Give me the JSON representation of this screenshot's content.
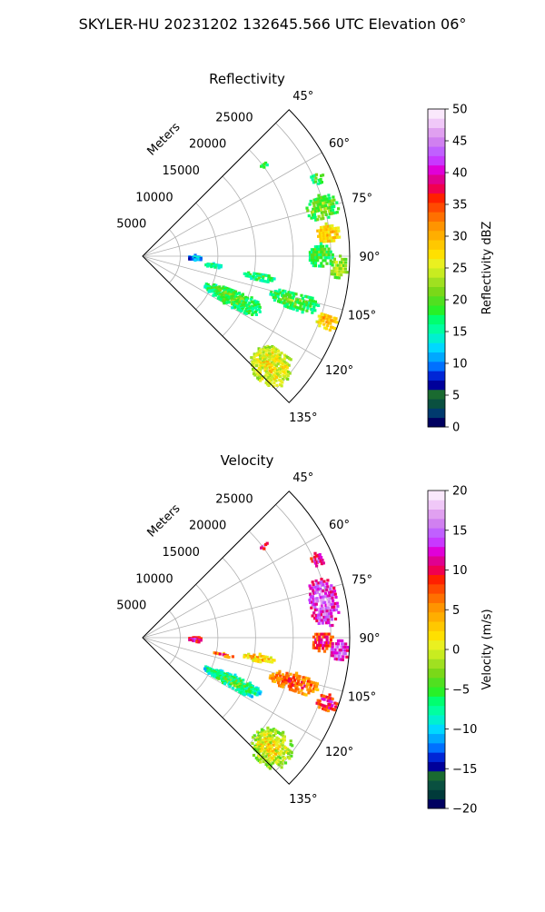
{
  "figure": {
    "suptitle": "SKYLER-HU  20231202  132645.566 UTC Elevation 06°"
  },
  "chart_data": [
    {
      "type": "heatmap",
      "projection": "polar-sector",
      "title": "Reflectivity",
      "radial_label": "Meters",
      "azimuth_range_deg": [
        45,
        135
      ],
      "azimuth_ticks": [
        "45°",
        "60°",
        "75°",
        "90°",
        "105°",
        "120°",
        "135°"
      ],
      "azimuth_tick_values": [
        45,
        60,
        75,
        90,
        105,
        120,
        135
      ],
      "range_ticks": [
        "5000",
        "10000",
        "15000",
        "20000",
        "25000"
      ],
      "range_tick_values": [
        5000,
        10000,
        15000,
        20000,
        25000
      ],
      "range_max": 27500,
      "grid": true,
      "colorbar": {
        "label": "Reflectivity dBZ",
        "min": 0,
        "max": 50,
        "ticks": [
          "0",
          "5",
          "10",
          "15",
          "20",
          "25",
          "30",
          "35",
          "40",
          "45",
          "50"
        ],
        "tick_values": [
          0,
          5,
          10,
          15,
          20,
          25,
          30,
          35,
          40,
          45,
          50
        ],
        "colors": [
          "#000060",
          "#003a6e",
          "#0a5040",
          "#1a6a30",
          "#00009a",
          "#0026d6",
          "#0070ff",
          "#00a8ff",
          "#00d8ff",
          "#00f0d0",
          "#00ffa0",
          "#00ff70",
          "#28f028",
          "#50e020",
          "#7ad818",
          "#a0e020",
          "#c8ec20",
          "#eaf020",
          "#ffe000",
          "#ffc800",
          "#ffae00",
          "#ff9400",
          "#ff7000",
          "#ff4a00",
          "#ff2000",
          "#f00050",
          "#e00090",
          "#e000d8",
          "#c838ff",
          "#c060ff",
          "#d080f0",
          "#e0a0f0",
          "#f0c8f8",
          "#fae8fc"
        ]
      },
      "echoes": [
        {
          "az": [
            71,
            79
          ],
          "r": [
            22500,
            27000
          ],
          "value": 22
        },
        {
          "az": [
            80,
            86
          ],
          "r": [
            23000,
            26500
          ],
          "value": 30
        },
        {
          "az": [
            86,
            94
          ],
          "r": [
            22000,
            25500
          ],
          "value": 20
        },
        {
          "az": [
            90,
            97
          ],
          "r": [
            25000,
            27500
          ],
          "value": 24
        },
        {
          "az": [
            98,
            102
          ],
          "r": [
            13500,
            18000
          ],
          "value": 19
        },
        {
          "az": [
            103,
            110
          ],
          "r": [
            17500,
            24500
          ],
          "value": 20
        },
        {
          "az": [
            107,
            112
          ],
          "r": [
            24500,
            27500
          ],
          "value": 30
        },
        {
          "az": [
            110,
            120
          ],
          "r": [
            9000,
            17500
          ],
          "value": 20
        },
        {
          "az": [
            124,
            137
          ],
          "r": [
            19500,
            25500
          ],
          "value": 27
        },
        {
          "az": [
            64,
            68
          ],
          "r": [
            24500,
            26500
          ],
          "value": 20
        },
        {
          "az": [
            52,
            54
          ],
          "r": [
            19500,
            21000
          ],
          "value": 20
        },
        {
          "az": [
            89,
            95
          ],
          "r": [
            6000,
            8000
          ],
          "value": 12
        },
        {
          "az": [
            96,
            99
          ],
          "r": [
            8000,
            11000
          ],
          "value": 17
        }
      ]
    },
    {
      "type": "heatmap",
      "projection": "polar-sector",
      "title": "Velocity",
      "radial_label": "Meters",
      "azimuth_range_deg": [
        45,
        135
      ],
      "azimuth_ticks": [
        "45°",
        "60°",
        "75°",
        "90°",
        "105°",
        "120°",
        "135°"
      ],
      "azimuth_tick_values": [
        45,
        60,
        75,
        90,
        105,
        120,
        135
      ],
      "range_ticks": [
        "5000",
        "10000",
        "15000",
        "20000",
        "25000"
      ],
      "range_tick_values": [
        5000,
        10000,
        15000,
        20000,
        25000
      ],
      "range_max": 27500,
      "grid": true,
      "colorbar": {
        "label": "Velocity (m/s)",
        "min": -20,
        "max": 20,
        "ticks": [
          "−20",
          "−15",
          "−10",
          "−5",
          "0",
          "5",
          "10",
          "15",
          "20"
        ],
        "tick_values": [
          -20,
          -15,
          -10,
          -5,
          0,
          5,
          10,
          15,
          20
        ],
        "colors": [
          "#000060",
          "#003a3a",
          "#0a5040",
          "#1a6a30",
          "#00009a",
          "#0026d6",
          "#0070ff",
          "#00a8ff",
          "#00d8ff",
          "#00f0d0",
          "#00ffa0",
          "#00ff70",
          "#28f028",
          "#50e020",
          "#7ad818",
          "#a0e020",
          "#c8ec20",
          "#eaf020",
          "#ffe000",
          "#ffc800",
          "#ffae00",
          "#ff9400",
          "#ff7000",
          "#ff4a00",
          "#ff2000",
          "#f00050",
          "#e00090",
          "#e000d8",
          "#c838ff",
          "#c060ff",
          "#d080f0",
          "#e0a0f0",
          "#f0c8f8",
          "#fae8fc"
        ]
      },
      "echoes": [
        {
          "az": [
            71,
            87
          ],
          "r": [
            22500,
            26500
          ],
          "value": 15
        },
        {
          "az": [
            88,
            95
          ],
          "r": [
            22500,
            25500
          ],
          "value": 10
        },
        {
          "az": [
            90,
            97
          ],
          "r": [
            25000,
            27500
          ],
          "value": 15
        },
        {
          "az": [
            98,
            102
          ],
          "r": [
            13500,
            18000
          ],
          "value": 4
        },
        {
          "az": [
            101,
            103
          ],
          "r": [
            9500,
            12500
          ],
          "value": 8
        },
        {
          "az": [
            103,
            110
          ],
          "r": [
            17500,
            24500
          ],
          "value": 8
        },
        {
          "az": [
            107,
            112
          ],
          "r": [
            24500,
            27500
          ],
          "value": 11
        },
        {
          "az": [
            112,
            120
          ],
          "r": [
            9000,
            17500
          ],
          "value": -5
        },
        {
          "az": [
            124,
            137
          ],
          "r": [
            19500,
            25500
          ],
          "value": 1
        },
        {
          "az": [
            64,
            68
          ],
          "r": [
            24500,
            26500
          ],
          "value": 13
        },
        {
          "az": [
            89,
            95
          ],
          "r": [
            6000,
            8000
          ],
          "value": 12
        },
        {
          "az": [
            52,
            54
          ],
          "r": [
            19500,
            21000
          ],
          "value": 13
        }
      ]
    }
  ]
}
